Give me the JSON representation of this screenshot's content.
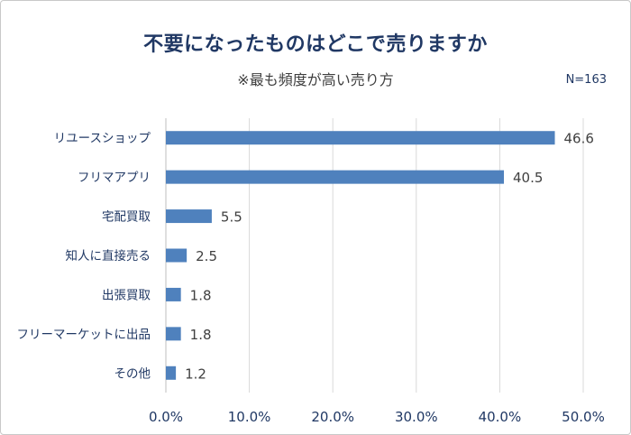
{
  "chart_data": {
    "type": "bar",
    "orientation": "horizontal",
    "title": "不要になったものはどこで売りますか",
    "subtitle": "※最も頻度が高い売り方",
    "note": "N=163",
    "categories": [
      "リユースショップ",
      "フリマアプリ",
      "宅配買取",
      "知人に直接売る",
      "出張買取",
      "フリーマーケットに出品",
      "その他"
    ],
    "values": [
      46.6,
      40.5,
      5.5,
      2.5,
      1.8,
      1.8,
      1.2
    ],
    "value_labels": [
      "46.6",
      "40.5",
      "5.5",
      "2.5",
      "1.8",
      "1.8",
      "1.2"
    ],
    "xlim": [
      0,
      50
    ],
    "xticks": [
      0,
      10,
      20,
      30,
      40,
      50
    ],
    "xtick_labels": [
      "0.0%",
      "10.0%",
      "20.0%",
      "30.0%",
      "40.0%",
      "50.0%"
    ],
    "grid": "vertical",
    "bar_color": "#4f81bd"
  }
}
